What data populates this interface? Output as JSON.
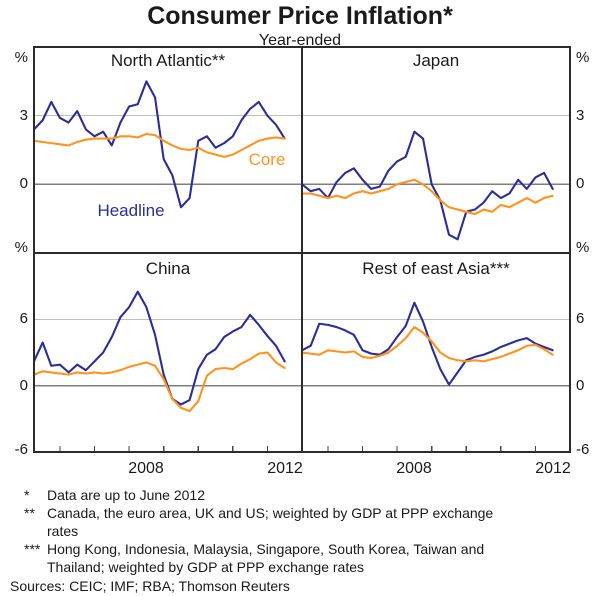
{
  "title": "Consumer Price Inflation*",
  "subtitle": "Year-ended",
  "series_labels": {
    "headline": "Headline",
    "core": "Core"
  },
  "y_axis_labels": {
    "left": [
      "%",
      "3",
      "0",
      "%",
      "6",
      "0",
      "-6"
    ],
    "right": [
      "%",
      "3",
      "0",
      "%",
      "6",
      "0",
      "-6"
    ]
  },
  "x_axis_labels": [
    "2008",
    "2012",
    "2008",
    "2012"
  ],
  "colors": {
    "headline": "#2d2d96",
    "core": "#ff931e",
    "gridline": "#bfbfbf",
    "zero_line": "#7f7f7f",
    "frame": "#2b2b2b",
    "tick": "#444444"
  },
  "footnotes": [
    {
      "marker": "*",
      "lines": [
        "Data are up to June 2012"
      ]
    },
    {
      "marker": "**",
      "lines": [
        "Canada, the euro area, UK and US; weighted by GDP at PPP exchange",
        "rates"
      ]
    },
    {
      "marker": "***",
      "lines": [
        "Hong Kong, Indonesia, Malaysia, Singapore, South Korea, Taiwan and",
        "Thailand; weighted by GDP at PPP exchange rates"
      ]
    }
  ],
  "sources": "Sources: CEIC; IMF; RBA; Thomson Reuters",
  "chart_data": {
    "type": "line",
    "title": "Consumer Price Inflation",
    "subtitle": "Year-ended",
    "unit": "%",
    "x_range": [
      2005.25,
      2013
    ],
    "x_ticks": [
      2006,
      2007,
      2008,
      2009,
      2010,
      2011,
      2012
    ],
    "x": [
      2005.25,
      2005.5,
      2005.75,
      2006,
      2006.25,
      2006.5,
      2006.75,
      2007,
      2007.25,
      2007.5,
      2007.75,
      2008,
      2008.25,
      2008.5,
      2008.75,
      2009,
      2009.25,
      2009.5,
      2009.75,
      2010,
      2010.25,
      2010.5,
      2010.75,
      2011,
      2011.25,
      2011.5,
      2011.75,
      2012,
      2012.25,
      2012.5
    ],
    "panels": [
      {
        "title": "North Atlantic**",
        "ylim": [
          -3,
          6
        ],
        "yticks": [
          0,
          3
        ],
        "series": [
          {
            "name": "Headline",
            "values": [
              2.4,
              2.8,
              3.6,
              2.9,
              2.7,
              3.2,
              2.4,
              2.1,
              2.3,
              1.7,
              2.7,
              3.4,
              3.5,
              4.5,
              3.8,
              1.1,
              0.4,
              -1.0,
              -0.6,
              1.9,
              2.1,
              1.6,
              1.8,
              2.1,
              2.8,
              3.3,
              3.6,
              3.0,
              2.6,
              2.0
            ]
          },
          {
            "name": "Core",
            "values": [
              1.9,
              1.85,
              1.8,
              1.75,
              1.7,
              1.85,
              1.95,
              2.0,
              2.0,
              2.0,
              2.1,
              2.1,
              2.05,
              2.2,
              2.15,
              1.9,
              1.7,
              1.55,
              1.5,
              1.6,
              1.4,
              1.3,
              1.2,
              1.3,
              1.5,
              1.7,
              1.9,
              2.0,
              2.05,
              2.0
            ]
          }
        ]
      },
      {
        "title": "Japan",
        "ylim": [
          -3,
          6
        ],
        "yticks": [
          0,
          3
        ],
        "series": [
          {
            "name": "Headline",
            "values": [
              0.0,
              -0.3,
              -0.2,
              -0.6,
              0.1,
              0.5,
              0.7,
              0.2,
              -0.2,
              -0.1,
              0.6,
              1.0,
              1.2,
              2.3,
              2.0,
              0.0,
              -0.7,
              -2.2,
              -2.4,
              -1.2,
              -1.1,
              -0.8,
              -0.3,
              -0.6,
              -0.4,
              0.2,
              -0.2,
              0.3,
              0.5,
              -0.2
            ]
          },
          {
            "name": "Core",
            "values": [
              -0.4,
              -0.4,
              -0.5,
              -0.6,
              -0.5,
              -0.6,
              -0.4,
              -0.3,
              -0.4,
              -0.3,
              -0.2,
              0.0,
              0.1,
              0.2,
              0.0,
              -0.3,
              -0.7,
              -1.0,
              -1.1,
              -1.2,
              -1.3,
              -1.1,
              -1.2,
              -0.9,
              -1.0,
              -0.8,
              -0.6,
              -0.8,
              -0.6,
              -0.5
            ]
          }
        ]
      },
      {
        "title": "China",
        "ylim": [
          -6,
          12
        ],
        "yticks": [
          0,
          6
        ],
        "series": [
          {
            "name": "Headline",
            "values": [
              2.2,
              3.9,
              1.8,
              1.9,
              1.2,
              1.9,
              1.4,
              2.2,
              3.0,
              4.4,
              6.2,
              7.1,
              8.5,
              7.1,
              4.6,
              1.0,
              -1.2,
              -1.7,
              -1.3,
              1.5,
              2.8,
              3.3,
              4.4,
              4.9,
              5.3,
              6.4,
              5.5,
              4.5,
              3.6,
              2.2
            ]
          },
          {
            "name": "Core",
            "values": [
              1.0,
              1.3,
              1.2,
              1.1,
              1.0,
              1.2,
              1.1,
              1.2,
              1.1,
              1.2,
              1.4,
              1.7,
              1.9,
              2.1,
              1.8,
              0.6,
              -1.2,
              -2.0,
              -2.3,
              -1.4,
              0.9,
              1.5,
              1.6,
              1.5,
              2.0,
              2.4,
              2.9,
              3.0,
              2.1,
              1.6
            ]
          }
        ]
      },
      {
        "title": "Rest of east Asia***",
        "ylim": [
          -6,
          12
        ],
        "yticks": [
          0,
          6
        ],
        "series": [
          {
            "name": "Headline",
            "values": [
              3.2,
              3.6,
              5.6,
              5.5,
              5.3,
              5.0,
              4.6,
              3.2,
              2.9,
              2.8,
              3.3,
              4.4,
              5.4,
              7.5,
              5.8,
              3.5,
              1.5,
              0.1,
              1.2,
              2.3,
              2.6,
              2.8,
              3.1,
              3.5,
              3.8,
              4.1,
              4.3,
              3.8,
              3.5,
              3.2
            ]
          },
          {
            "name": "Core",
            "values": [
              3.0,
              2.9,
              2.8,
              3.2,
              3.1,
              3.0,
              3.1,
              2.6,
              2.5,
              2.7,
              3.0,
              3.6,
              4.3,
              5.3,
              4.8,
              4.0,
              3.0,
              2.5,
              2.3,
              2.2,
              2.3,
              2.2,
              2.4,
              2.6,
              2.9,
              3.2,
              3.6,
              3.7,
              3.3,
              2.8
            ]
          }
        ]
      }
    ]
  }
}
